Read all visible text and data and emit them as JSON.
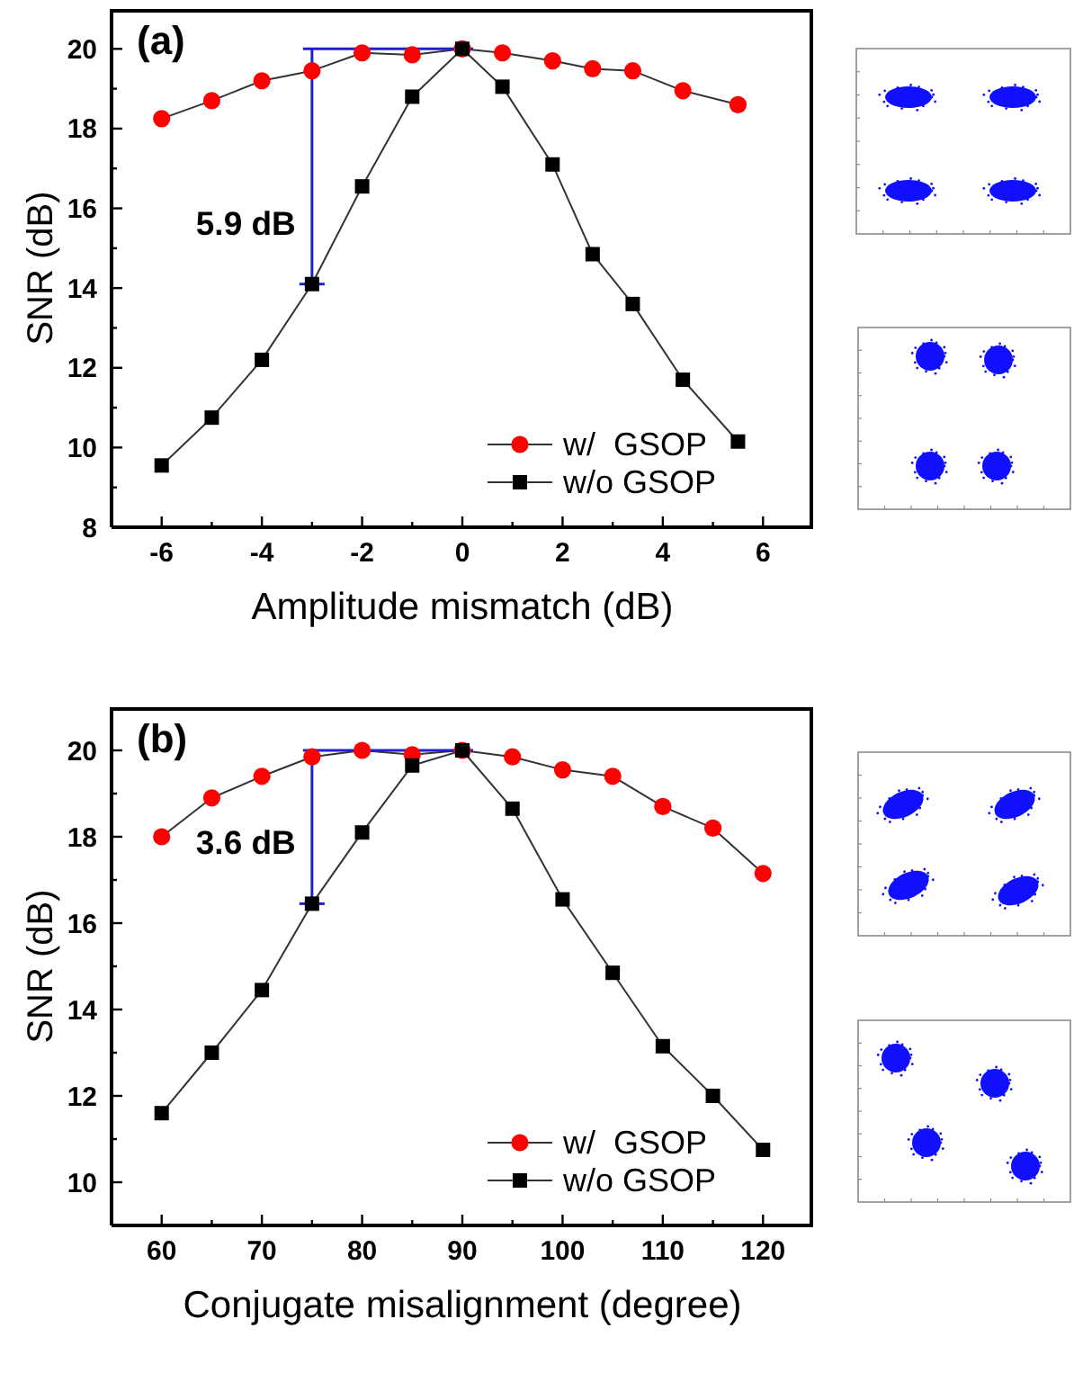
{
  "chart_data": [
    {
      "type": "line",
      "xlabel": "Amplitude mismatch (dB)",
      "ylabel": "SNR (dB)",
      "annotations": [
        "(a)",
        {
          "text": "5.9 dB",
          "x": -3,
          "y": 14.1
        }
      ],
      "x": [
        -6,
        -5,
        -4,
        -3,
        -2,
        -1,
        0,
        0.8,
        1.8,
        2.6,
        3.4,
        4.4,
        5.5
      ],
      "series": [
        {
          "name": "w/  GSOP",
          "color": "#ff0000",
          "marker": "circle",
          "values": [
            18.25,
            18.7,
            19.2,
            19.45,
            19.9,
            19.85,
            20.0,
            19.9,
            19.7,
            19.5,
            19.45,
            18.95,
            18.6
          ]
        },
        {
          "name": "w/o GSOP",
          "color": "#000000",
          "marker": "square",
          "values": [
            9.55,
            10.75,
            12.2,
            14.1,
            16.55,
            18.8,
            20.0,
            19.05,
            17.1,
            14.85,
            13.6,
            11.7,
            10.15
          ]
        }
      ],
      "xlim": [
        -7,
        7
      ],
      "xticks": [
        -6,
        {
          "value": -5,
          "label": null
        },
        -4,
        {
          "value": -3,
          "label": null
        },
        -2,
        {
          "value": -1,
          "label": null
        },
        0,
        {
          "value": 1,
          "label": null
        },
        2,
        {
          "value": 3,
          "label": null
        },
        4,
        {
          "value": 5,
          "label": null
        },
        6
      ],
      "ylim": [
        8,
        21
      ],
      "yticks": [
        8,
        {
          "value": 9,
          "label": null
        },
        10,
        {
          "value": 11,
          "label": null
        },
        12,
        {
          "value": 13,
          "label": null
        },
        14,
        {
          "value": 15,
          "label": null
        },
        16,
        {
          "value": 17,
          "label": null
        },
        18,
        {
          "value": 19,
          "label": null
        },
        20
      ],
      "legend": "bottom right"
    },
    {
      "type": "line",
      "xlabel": "Conjugate misalignment (degree)",
      "ylabel": "SNR (dB)",
      "annotations": [
        "(b)",
        {
          "text": "3.6 dB",
          "x": 75,
          "y": 16.45
        }
      ],
      "x": [
        60,
        65,
        70,
        75,
        80,
        85,
        90,
        95,
        100,
        105,
        110,
        115,
        120
      ],
      "series": [
        {
          "name": "w/  GSOP",
          "color": "#ff0000",
          "marker": "circle",
          "values": [
            18.0,
            18.9,
            19.4,
            19.85,
            20.0,
            19.9,
            20.0,
            19.85,
            19.55,
            19.4,
            18.7,
            18.2,
            17.15
          ]
        },
        {
          "name": "w/o GSOP",
          "color": "#000000",
          "marker": "square",
          "values": [
            11.6,
            13.0,
            14.45,
            16.45,
            18.1,
            19.65,
            20.0,
            18.65,
            16.55,
            14.85,
            13.15,
            12.0,
            10.75
          ]
        }
      ],
      "xlim": [
        55,
        125
      ],
      "xticks": [
        60,
        {
          "value": 65,
          "label": null
        },
        70,
        {
          "value": 75,
          "label": null
        },
        80,
        {
          "value": 85,
          "label": null
        },
        90,
        {
          "value": 95,
          "label": null
        },
        100,
        {
          "value": 105,
          "label": null
        },
        110,
        {
          "value": 115,
          "label": null
        },
        120
      ],
      "ylim": [
        9,
        21
      ],
      "yticks": [
        {
          "value": 9,
          "label": null
        },
        10,
        {
          "value": 11,
          "label": null
        },
        12,
        {
          "value": 13,
          "label": null
        },
        14,
        {
          "value": 15,
          "label": null
        },
        16,
        {
          "value": 17,
          "label": null
        },
        18,
        {
          "value": 19,
          "label": null
        },
        20
      ],
      "legend": "bottom right"
    }
  ]
}
